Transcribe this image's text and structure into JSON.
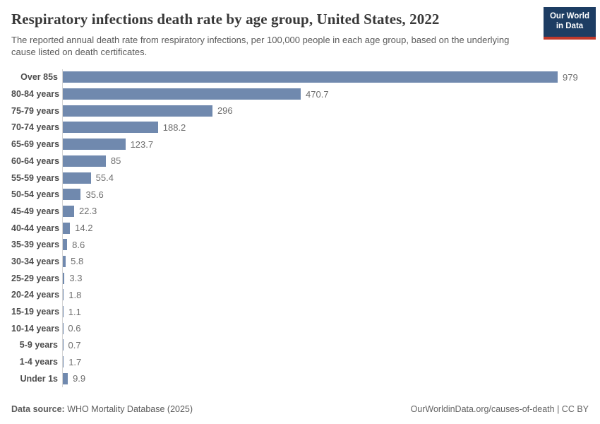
{
  "header": {
    "title": "Respiratory infections death rate by age group, United States, 2022",
    "subtitle": "The reported annual death rate from respiratory infections, per 100,000 people in each age group, based on the underlying cause listed on death certificates.",
    "logo": {
      "line1": "Our World",
      "line2": "in Data",
      "bg_color": "#1d3d63",
      "accent_color": "#c0392b"
    }
  },
  "chart_data": {
    "type": "bar",
    "orientation": "horizontal",
    "title": "Respiratory infections death rate by age group, United States, 2022",
    "categories": [
      "Over 85s",
      "80-84 years",
      "75-79 years",
      "70-74 years",
      "65-69 years",
      "60-64 years",
      "55-59 years",
      "50-54 years",
      "45-49 years",
      "40-44 years",
      "35-39 years",
      "30-34 years",
      "25-29 years",
      "20-24 years",
      "15-19 years",
      "10-14 years",
      "5-9 years",
      "1-4 years",
      "Under 1s"
    ],
    "values": [
      979,
      470.7,
      296,
      188.2,
      123.7,
      85,
      55.4,
      35.6,
      22.3,
      14.2,
      8.6,
      5.8,
      3.3,
      1.8,
      1.1,
      0.6,
      0.7,
      1.7,
      9.9
    ],
    "value_labels": [
      "979",
      "470.7",
      "296",
      "188.2",
      "123.7",
      "85",
      "55.4",
      "35.6",
      "22.3",
      "14.2",
      "8.6",
      "5.8",
      "3.3",
      "1.8",
      "1.1",
      "0.6",
      "0.7",
      "1.7",
      "9.9"
    ],
    "xlim": [
      0,
      979
    ],
    "bar_color": "#7089ae",
    "grid": false,
    "legend": "none",
    "unit": "deaths per 100,000 people"
  },
  "footer": {
    "source_label": "Data source:",
    "source_text": " WHO Mortality Database (2025)",
    "right_text": "OurWorldinData.org/causes-of-death | CC BY"
  }
}
